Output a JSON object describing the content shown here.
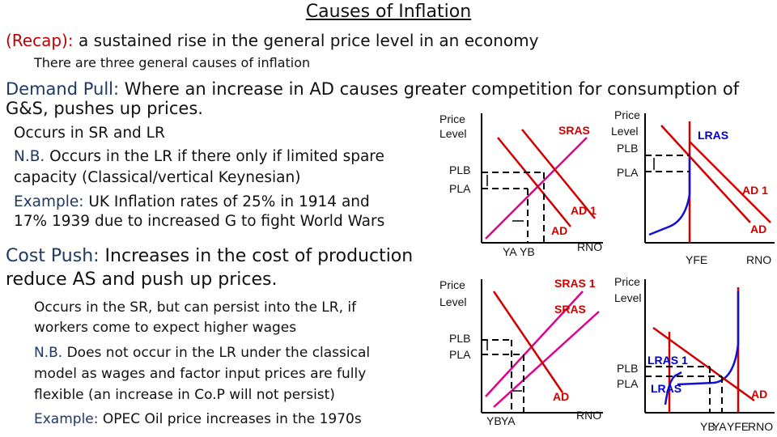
{
  "title": "Causes of Inflation",
  "recap": {
    "label": "(Recap):",
    "text": " a sustained rise in the general price level in an economy",
    "subtext": "There are three general causes of inflation"
  },
  "demand_pull": {
    "heading": "Demand Pull:",
    "heading_text": " Where an increase in AD causes greater competition for consumption of",
    "heading_text2": "G&S, pushes up prices.",
    "line1": "Occurs in SR and LR",
    "nb_label": "N.B.",
    "nb_text": " Occurs in the LR if there only if limited spare",
    "nb_text2": "capacity (Classical/vertical Keynesian)",
    "example_label": "Example:",
    "example_text": " UK Inflation rates of 25% in 1914 and",
    "example_text2": "17% 1939 due to increased G to fight World Wars"
  },
  "cost_push": {
    "heading": "Cost Push:",
    "heading_text": " Increases in the cost of production",
    "heading_text2": "reduce AS and push up prices.",
    "line1": "Occurs in the SR, but can persist into the LR, if",
    "line2": "workers come to expect higher wages",
    "nb_label": "N.B.",
    "nb_text": " Does not occur in the LR under the classical",
    "nb_text2": "model as wages and factor input prices are fully",
    "nb_text3": "flexible (an increase in Co.P will not persist)",
    "example_label": "Example:",
    "example_text": " OPEC Oil price increases in the 1970s"
  },
  "graph_dp_sr": {
    "price": "Price",
    "level": "Level",
    "sras": "SRAS",
    "pl_b": "PLB",
    "pl_a": "PLA",
    "ad1": "AD 1",
    "ad": "AD",
    "ya": "YA",
    "yb": "YB",
    "rno": "RNO"
  },
  "graph_dp_lr": {
    "price": "Price",
    "level": "Level",
    "pl_b": "PLB",
    "pl_a": "PLA",
    "lras": "LRAS",
    "ad1": "AD 1",
    "ad": "AD",
    "yfe": "YFE",
    "rno": "RNO"
  },
  "graph_cp_sr": {
    "price": "Price",
    "level": "Level",
    "sras1": "SRAS 1",
    "sras": "SRAS",
    "pl_b": "PLB",
    "pl_a": "PLA",
    "ad": "AD",
    "yb": "YB",
    "ya": "YA",
    "rno": "RNO"
  },
  "graph_cp_lr": {
    "price": "Price",
    "level": "Level",
    "pl_b": "PLB",
    "pl_a": "PLA",
    "lras1": "LRAS 1",
    "lras": "LRAS",
    "ad": "AD",
    "yb": "YB",
    "ya": "YA",
    "yfe": "YFE",
    "rno": "RNO"
  },
  "colors": {
    "heading": "#c00000",
    "curve_red": "#d00000",
    "curve_pink": "#e0008c",
    "curve_blue": "#1010d0"
  }
}
